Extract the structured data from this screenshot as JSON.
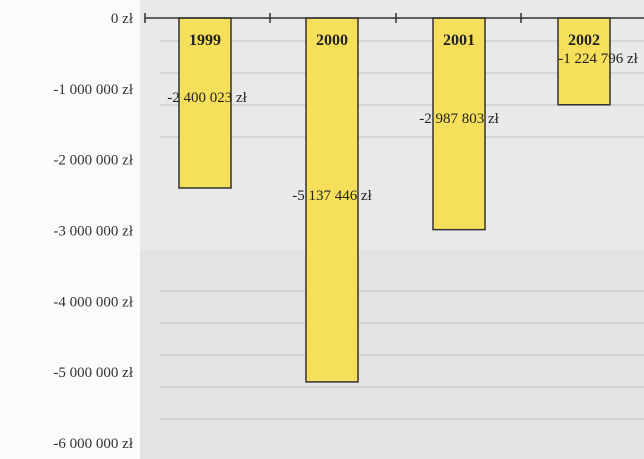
{
  "chart_data": {
    "type": "bar",
    "title": "",
    "xlabel": "",
    "ylabel": "",
    "categories": [
      "1999",
      "2000",
      "2001",
      "2002"
    ],
    "values": [
      -2400023,
      -5137446,
      -2987803,
      -1224796
    ],
    "value_labels": [
      "-2 400 023 zł",
      "-5 137 446 zł",
      "-2 987 803 zł",
      "-1 224 796 zł"
    ],
    "ylim": [
      -6000000,
      0
    ],
    "yticks": [
      0,
      -1000000,
      -2000000,
      -3000000,
      -4000000,
      -5000000,
      -6000000
    ],
    "ytick_labels": [
      "0 zł",
      "-1 000 000 zł",
      "-2 000 000 zł",
      "-3 000 000 zł",
      "-4 000 000 zł",
      "-5 000 000 zł",
      "-6 000 000 zł"
    ],
    "grid": false,
    "legend": "none",
    "colors": {
      "bar_fill": "#f6df5a",
      "bar_stroke": "#333333",
      "axis": "#333333"
    }
  }
}
